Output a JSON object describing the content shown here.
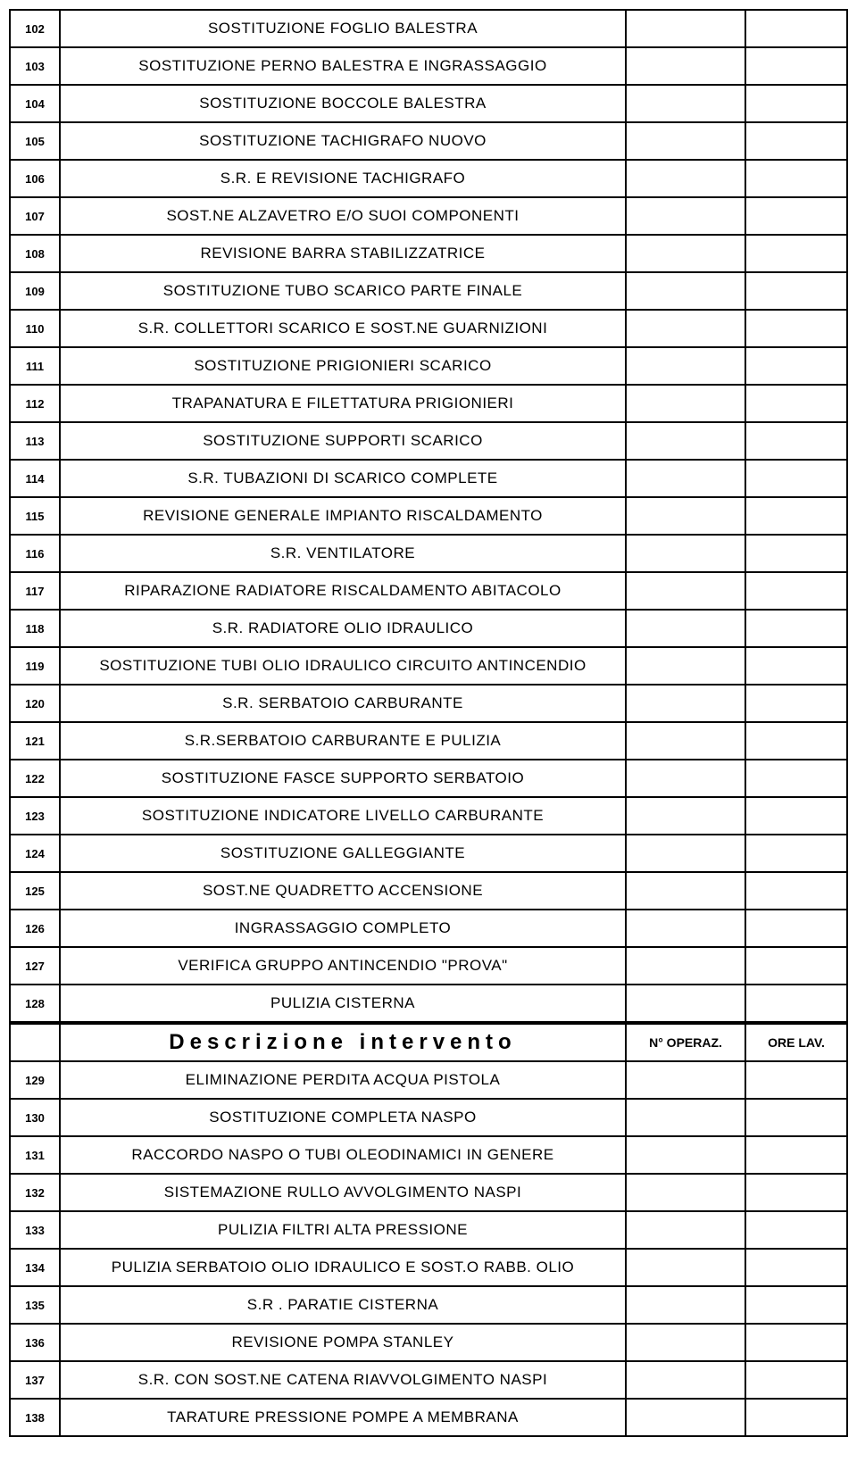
{
  "rows": [
    {
      "num": "102",
      "desc": "SOSTITUZIONE FOGLIO BALESTRA"
    },
    {
      "num": "103",
      "desc": "SOSTITUZIONE PERNO BALESTRA E INGRASSAGGIO"
    },
    {
      "num": "104",
      "desc": "SOSTITUZIONE BOCCOLE BALESTRA"
    },
    {
      "num": "105",
      "desc": "SOSTITUZIONE TACHIGRAFO NUOVO"
    },
    {
      "num": "106",
      "desc": "S.R. E REVISIONE TACHIGRAFO"
    },
    {
      "num": "107",
      "desc": "SOST.NE ALZAVETRO E/O SUOI COMPONENTI"
    },
    {
      "num": "108",
      "desc": "REVISIONE BARRA STABILIZZATRICE"
    },
    {
      "num": "109",
      "desc": "SOSTITUZIONE TUBO SCARICO PARTE FINALE"
    },
    {
      "num": "110",
      "desc": "S.R. COLLETTORI SCARICO E SOST.NE GUARNIZIONI"
    },
    {
      "num": "111",
      "desc": "SOSTITUZIONE PRIGIONIERI SCARICO"
    },
    {
      "num": "112",
      "desc": "TRAPANATURA E FILETTATURA PRIGIONIERI"
    },
    {
      "num": "113",
      "desc": "SOSTITUZIONE SUPPORTI SCARICO"
    },
    {
      "num": "114",
      "desc": "S.R. TUBAZIONI DI SCARICO COMPLETE"
    },
    {
      "num": "115",
      "desc": "REVISIONE GENERALE IMPIANTO RISCALDAMENTO"
    },
    {
      "num": "116",
      "desc": "S.R. VENTILATORE"
    },
    {
      "num": "117",
      "desc": "RIPARAZIONE RADIATORE  RISCALDAMENTO ABITACOLO"
    },
    {
      "num": "118",
      "desc": "S.R. RADIATORE OLIO IDRAULICO"
    },
    {
      "num": "119",
      "desc": "SOSTITUZIONE TUBI OLIO IDRAULICO CIRCUITO ANTINCENDIO"
    },
    {
      "num": "120",
      "desc": "S.R. SERBATOIO CARBURANTE"
    },
    {
      "num": "121",
      "desc": "S.R.SERBATOIO CARBURANTE E PULIZIA"
    },
    {
      "num": "122",
      "desc": "SOSTITUZIONE FASCE SUPPORTO SERBATOIO"
    },
    {
      "num": "123",
      "desc": "SOSTITUZIONE INDICATORE LIVELLO CARBURANTE"
    },
    {
      "num": "124",
      "desc": "SOSTITUZIONE GALLEGGIANTE"
    },
    {
      "num": "125",
      "desc": "SOST.NE QUADRETTO ACCENSIONE"
    },
    {
      "num": "126",
      "desc": "INGRASSAGGIO COMPLETO"
    },
    {
      "num": "127",
      "desc": "VERIFICA GRUPPO ANTINCENDIO \"PROVA\""
    },
    {
      "num": "128",
      "desc": "PULIZIA CISTERNA"
    }
  ],
  "header": {
    "desc": "Descrizione intervento",
    "op": "N° OPERAZ.",
    "ore": "ORE LAV."
  },
  "rows2": [
    {
      "num": "129",
      "desc": "ELIMINAZIONE PERDITA ACQUA PISTOLA"
    },
    {
      "num": "130",
      "desc": "SOSTITUZIONE COMPLETA NASPO"
    },
    {
      "num": "131",
      "desc": "RACCORDO NASPO O TUBI OLEODINAMICI IN GENERE"
    },
    {
      "num": "132",
      "desc": "SISTEMAZIONE RULLO AVVOLGIMENTO NASPI"
    },
    {
      "num": "133",
      "desc": "PULIZIA FILTRI ALTA PRESSIONE"
    },
    {
      "num": "134",
      "desc": "PULIZIA SERBATOIO OLIO IDRAULICO E SOST.O RABB. OLIO"
    },
    {
      "num": "135",
      "desc": "S.R . PARATIE CISTERNA"
    },
    {
      "num": "136",
      "desc": "REVISIONE  POMPA STANLEY"
    },
    {
      "num": "137",
      "desc": "S.R. CON SOST.NE CATENA RIAVVOLGIMENTO NASPI"
    },
    {
      "num": "138",
      "desc": "TARATURE PRESSIONE POMPE A MEMBRANA"
    }
  ]
}
